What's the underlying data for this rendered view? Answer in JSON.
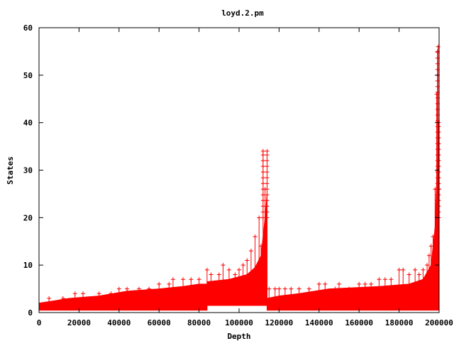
{
  "chart_data": {
    "type": "scatter",
    "title": "loyd.2.pm",
    "xlabel": "Depth",
    "ylabel": "States",
    "xlim": [
      0,
      200000
    ],
    "ylim": [
      0,
      60
    ],
    "x_ticks": [
      "0",
      "20000",
      "40000",
      "60000",
      "80000",
      "100000",
      "120000",
      "140000",
      "160000",
      "180000",
      "200000"
    ],
    "y_ticks": [
      "0",
      "10",
      "20",
      "30",
      "40",
      "50",
      "60"
    ],
    "grid": false,
    "legend": "none",
    "marker": "plus",
    "color": "#ff0000",
    "series": [
      {
        "band_floor": [
          [
            0,
            0.5
          ],
          [
            84000,
            0.5
          ],
          [
            84000,
            1.5
          ],
          [
            114000,
            1.5
          ],
          [
            114000,
            0.5
          ],
          [
            200000,
            0.5
          ]
        ],
        "band_top": [
          [
            0,
            2
          ],
          [
            8000,
            2.5
          ],
          [
            15000,
            3
          ],
          [
            30000,
            3.5
          ],
          [
            44000,
            4.5
          ],
          [
            60000,
            5
          ],
          [
            72000,
            5.5
          ],
          [
            80000,
            6
          ],
          [
            84000,
            6
          ],
          [
            84000,
            6.5
          ],
          [
            95000,
            7
          ],
          [
            104000,
            8
          ],
          [
            108000,
            9.5
          ],
          [
            111000,
            12
          ],
          [
            113000,
            20
          ],
          [
            114000,
            25
          ],
          [
            114000,
            3
          ],
          [
            120000,
            3.5
          ],
          [
            130000,
            4
          ],
          [
            145000,
            5
          ],
          [
            170000,
            5.5
          ],
          [
            185000,
            6
          ],
          [
            192000,
            7
          ],
          [
            196000,
            10
          ],
          [
            198000,
            18
          ],
          [
            199000,
            30
          ],
          [
            200000,
            40
          ]
        ],
        "peaks": [
          [
            5000,
            3
          ],
          [
            12000,
            3
          ],
          [
            18000,
            4
          ],
          [
            22000,
            4
          ],
          [
            30000,
            4
          ],
          [
            36000,
            4
          ],
          [
            40000,
            5
          ],
          [
            44000,
            5
          ],
          [
            50000,
            5
          ],
          [
            55000,
            5
          ],
          [
            60000,
            6
          ],
          [
            65000,
            6
          ],
          [
            67000,
            7
          ],
          [
            72000,
            7
          ],
          [
            76000,
            7
          ],
          [
            80000,
            7
          ],
          [
            84000,
            9
          ],
          [
            86000,
            8
          ],
          [
            90000,
            8
          ],
          [
            92000,
            10
          ],
          [
            95000,
            9
          ],
          [
            98000,
            8
          ],
          [
            100000,
            9
          ],
          [
            102000,
            10
          ],
          [
            104000,
            11
          ],
          [
            106000,
            13
          ],
          [
            108000,
            16
          ],
          [
            110000,
            20
          ],
          [
            111000,
            14
          ],
          [
            112000,
            34
          ],
          [
            113000,
            26
          ],
          [
            114000,
            34
          ],
          [
            115000,
            5
          ],
          [
            118000,
            5
          ],
          [
            120000,
            5
          ],
          [
            123000,
            5
          ],
          [
            126000,
            5
          ],
          [
            130000,
            5
          ],
          [
            135000,
            5
          ],
          [
            140000,
            6
          ],
          [
            143000,
            6
          ],
          [
            148000,
            5
          ],
          [
            150000,
            6
          ],
          [
            155000,
            5
          ],
          [
            160000,
            6
          ],
          [
            163000,
            6
          ],
          [
            166000,
            6
          ],
          [
            170000,
            7
          ],
          [
            173000,
            7
          ],
          [
            176000,
            7
          ],
          [
            180000,
            9
          ],
          [
            182000,
            9
          ],
          [
            185000,
            8
          ],
          [
            188000,
            9
          ],
          [
            190000,
            8
          ],
          [
            192000,
            9
          ],
          [
            194000,
            10
          ],
          [
            195000,
            12
          ],
          [
            196000,
            14
          ],
          [
            197000,
            16
          ],
          [
            198000,
            26
          ],
          [
            198800,
            46
          ],
          [
            199200,
            55
          ],
          [
            199500,
            56
          ],
          [
            199800,
            40
          ],
          [
            200000,
            26
          ]
        ]
      }
    ]
  }
}
